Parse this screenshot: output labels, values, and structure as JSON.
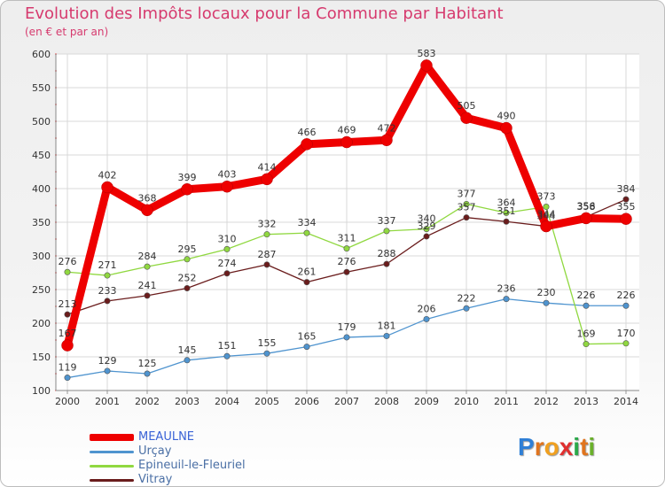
{
  "header": {
    "title": "Evolution des Impôts locaux pour la Commune par Habitant",
    "subtitle": "(en € et par an)"
  },
  "logo": {
    "letters": [
      "P",
      "r",
      "o",
      "x",
      "i",
      "t",
      "i"
    ],
    "colors": [
      "#2f7fd6",
      "#e0741e",
      "#f0a020",
      "#e03030",
      "#2aa84a",
      "#e0741e",
      "#6ab02a"
    ]
  },
  "chart_data": {
    "type": "line",
    "title": "Evolution des Impôts locaux pour la Commune par Habitant",
    "subtitle": "(en € et par an)",
    "xlabel": "",
    "ylabel": "",
    "ylim": [
      100,
      600
    ],
    "yticks": [
      100,
      150,
      200,
      250,
      300,
      350,
      400,
      450,
      500,
      550,
      600
    ],
    "grid": true,
    "legend_position": "bottom-left",
    "categories": [
      "2000",
      "2001",
      "2002",
      "2003",
      "2004",
      "2005",
      "2006",
      "2007",
      "2008",
      "2009",
      "2010",
      "2011",
      "2012",
      "2013",
      "2014"
    ],
    "series": [
      {
        "name": "MEAULNE",
        "color": "#ee0000",
        "values": [
          167,
          402,
          368,
          399,
          403,
          414,
          466,
          469,
          472,
          583,
          505,
          490,
          344,
          356,
          355
        ]
      },
      {
        "name": "Urçay",
        "color": "#4f94cf",
        "values": [
          119,
          129,
          125,
          145,
          151,
          155,
          165,
          179,
          181,
          206,
          222,
          236,
          230,
          226,
          226
        ]
      },
      {
        "name": "Epineuil-le-Fleuriel",
        "color": "#90d840",
        "values": [
          276,
          271,
          284,
          295,
          310,
          332,
          334,
          311,
          337,
          340,
          377,
          364,
          373,
          169,
          170
        ]
      },
      {
        "name": "Vitray",
        "color": "#6a1c1c",
        "values": [
          213,
          233,
          241,
          252,
          274,
          287,
          261,
          276,
          288,
          329,
          357,
          351,
          344,
          358,
          384
        ]
      }
    ]
  }
}
